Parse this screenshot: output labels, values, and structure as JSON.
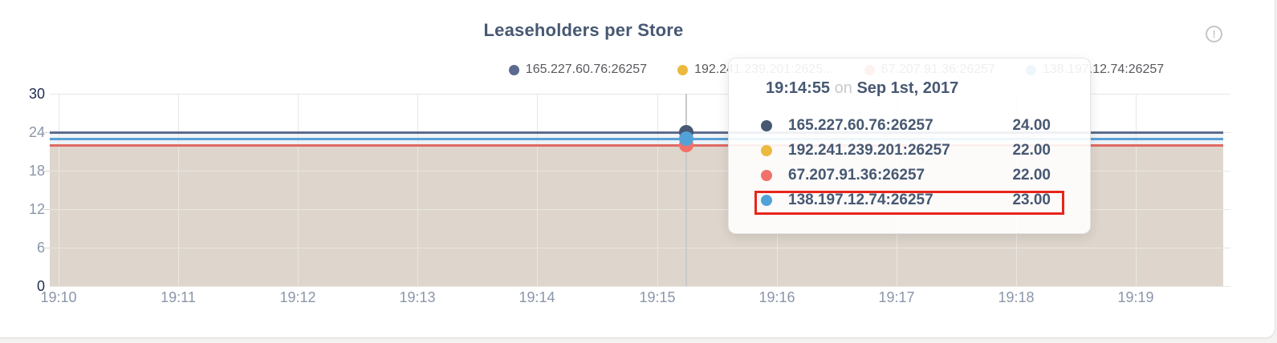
{
  "header": {
    "title": "Leaseholders per Store",
    "info_glyph": "!"
  },
  "legend": {
    "items": [
      {
        "label": "165.227.60.76:26257",
        "color": "#5a6b8e"
      },
      {
        "label": "192.241.239.201:2625...",
        "color": "#ecb93f"
      },
      {
        "label": "67.207.91.36:26257",
        "color": "#f0716b"
      },
      {
        "label": "138.197.12.74:26257",
        "color": "#52a2d8"
      }
    ]
  },
  "chart_data": {
    "type": "line",
    "title": "Leaseholders per Store",
    "x": [
      "19:10",
      "19:11",
      "19:12",
      "19:13",
      "19:14",
      "19:15",
      "19:16",
      "19:17",
      "19:18",
      "19:19"
    ],
    "ylim": [
      0,
      30
    ],
    "yticks": [
      0,
      6,
      12,
      18,
      24,
      30
    ],
    "grid": true,
    "legend_position": "top",
    "series": [
      {
        "name": "165.227.60.76:26257",
        "flat": true,
        "value": 24,
        "color": "#475872",
        "line_color": "#5d6d8e"
      },
      {
        "name": "192.241.239.201:26257",
        "flat": true,
        "value": 22,
        "color": "#ecb93f",
        "line_color": "#ecb93f"
      },
      {
        "name": "67.207.91.36:26257",
        "flat": true,
        "value": 22,
        "color": "#f0716b",
        "line_color": "#df6a62"
      },
      {
        "name": "138.197.12.74:26257",
        "flat": true,
        "value": 23,
        "color": "#52a2d8",
        "line_color": "#57a0d6"
      }
    ],
    "area_bands": [
      {
        "from": 0,
        "to": 22,
        "color": "#ded6cc"
      },
      {
        "from": 22,
        "to": 23,
        "color": "#edf2f8"
      },
      {
        "from": 23,
        "to": 24,
        "color": "#f3f4f6"
      }
    ]
  },
  "tooltip": {
    "time": "19:14:55",
    "conjunction": "on",
    "date": "Sep 1st, 2017",
    "rows": [
      {
        "name": "165.227.60.76:26257",
        "value": "24.00",
        "color": "#475872"
      },
      {
        "name": "192.241.239.201:26257",
        "value": "22.00",
        "color": "#ecb93f"
      },
      {
        "name": "67.207.91.36:26257",
        "value": "22.00",
        "color": "#f0716b"
      },
      {
        "name": "138.197.12.74:26257",
        "value": "23.00",
        "color": "#52a2d8"
      }
    ],
    "highlighted_index": 3,
    "highlight_color": "#e8241b"
  },
  "colors": {
    "page_background": "#f4f3f1",
    "card_background": "#ffffff",
    "title_text": "#475872",
    "axis_label": "#8a96aa",
    "axis_endpoint_label": "#1d2c4e",
    "gridline": "#e9e7e3",
    "hover_line": "#c9c9c9",
    "area_fill": "#ded6cc"
  }
}
